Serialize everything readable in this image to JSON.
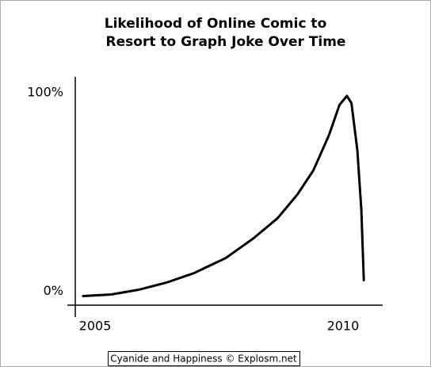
{
  "chart_data": {
    "type": "line",
    "title": [
      "Likelihood of Online Comic to",
      "Resort to Graph Joke Over Time"
    ],
    "x": [
      2004.76,
      2005.32,
      2005.88,
      2006.44,
      2007.0,
      2007.64,
      2008.2,
      2008.68,
      2009.08,
      2009.4,
      2009.72,
      2009.93,
      2010.08,
      2010.17,
      2010.29,
      2010.37,
      2010.42
    ],
    "values": [
      -2.4,
      -1.6,
      0.8,
      4.4,
      9.2,
      16.8,
      26.8,
      36.8,
      48.8,
      60.8,
      78.8,
      94,
      98.4,
      94.8,
      70.8,
      40.8,
      5.6
    ],
    "color": "#000000",
    "xlim": [
      2004.6,
      2010.8
    ],
    "xticks": [
      2005,
      2010
    ],
    "ylim": [
      -7,
      108
    ],
    "yticks": [
      {
        "value": 0,
        "label": "0%"
      },
      {
        "value": 100,
        "label": "100%"
      }
    ],
    "grid": false,
    "credit": "Cyanide and Happiness © Explosm.net"
  }
}
